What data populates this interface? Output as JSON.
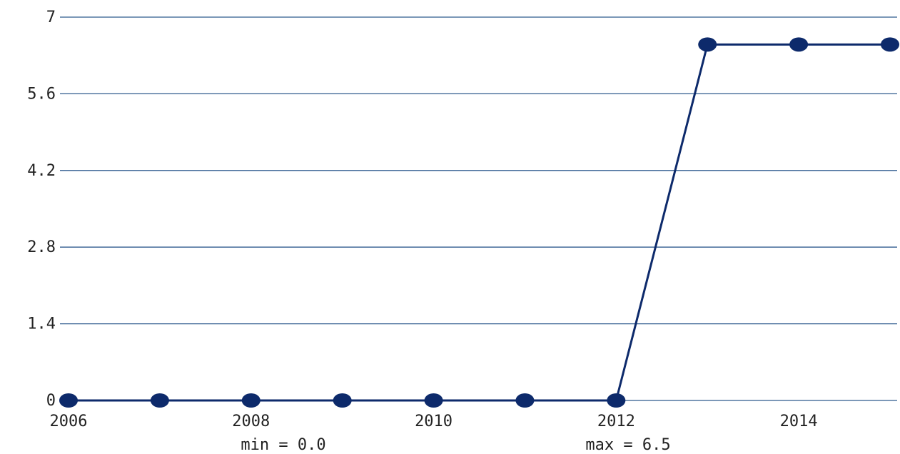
{
  "chart_data": {
    "type": "line",
    "x": [
      2006,
      2007,
      2008,
      2009,
      2010,
      2011,
      2012,
      2013,
      2014,
      2015
    ],
    "series": [
      {
        "values": [
          0,
          0,
          0,
          0,
          0,
          0,
          0,
          6.5,
          6.5,
          6.5
        ]
      }
    ],
    "xlim": [
      2006,
      2015
    ],
    "ylim": [
      0,
      7
    ],
    "x_ticks": [
      2006,
      2008,
      2010,
      2012,
      2014
    ],
    "y_ticks": [
      0,
      1.4,
      2.8,
      4.2,
      5.6,
      7
    ],
    "y_tick_labels": [
      "0",
      "1.4",
      "2.8",
      "4.2",
      "5.6",
      "7"
    ],
    "grid": "horizontal",
    "colors": {
      "line": "#0d2a6b",
      "marker": "#0d2a6b",
      "grid": "#2e5a8e"
    },
    "stats": {
      "min_label": "min = 0.0",
      "max_label": "max = 6.5"
    }
  }
}
